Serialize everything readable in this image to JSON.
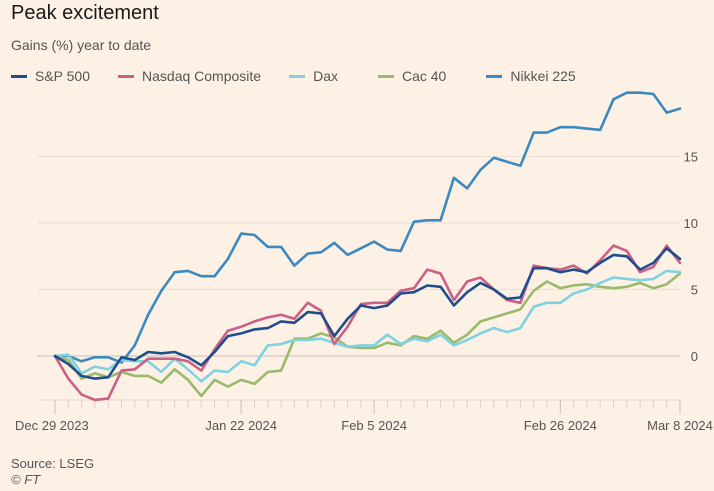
{
  "header": {
    "title": "Peak excitement",
    "subtitle": "Gains (%) year to date"
  },
  "footer": {
    "source": "Source: LSEG",
    "copyright": "© FT"
  },
  "chart_data": {
    "type": "line",
    "title": "Peak excitement",
    "subtitle": "Gains (%) year to date",
    "xlabel": "",
    "ylabel": "Gains (%)",
    "ylim": [
      -3.5,
      19.5
    ],
    "yticks": [
      0,
      5,
      10,
      15
    ],
    "x_tick_labels": [
      {
        "label": "Dec 29 2023",
        "index": 0
      },
      {
        "label": "Jan 22 2024",
        "index": 14
      },
      {
        "label": "Feb 5 2024",
        "index": 24
      },
      {
        "label": "Feb 26 2024",
        "index": 38
      },
      {
        "label": "Mar 8 2024",
        "index": 47
      }
    ],
    "n_points": 48,
    "grid": true,
    "legend_position": "top-left",
    "series": [
      {
        "name": "S&P 500",
        "color": "#1f4e8c",
        "values": [
          0,
          -0.6,
          -1.5,
          -1.7,
          -1.6,
          -0.1,
          -0.3,
          0.3,
          0.2,
          0.3,
          -0.1,
          -0.7,
          0.3,
          1.5,
          1.7,
          2.0,
          2.1,
          2.6,
          2.5,
          3.3,
          3.2,
          1.5,
          2.8,
          3.8,
          3.6,
          3.8,
          4.7,
          4.8,
          5.3,
          5.2,
          3.8,
          4.8,
          5.5,
          5.0,
          4.3,
          4.4,
          6.6,
          6.6,
          6.3,
          6.5,
          6.3,
          7.0,
          7.6,
          7.5,
          6.5,
          7.0,
          8.1,
          7.3
        ]
      },
      {
        "name": "Nasdaq Composite",
        "color": "#cc5f86",
        "values": [
          0,
          -1.7,
          -2.9,
          -3.3,
          -3.2,
          -1.1,
          -1.0,
          -0.2,
          -0.2,
          -0.2,
          -0.4,
          -1.1,
          0.5,
          1.9,
          2.2,
          2.6,
          2.9,
          3.1,
          2.8,
          4.0,
          3.4,
          0.9,
          2.2,
          3.9,
          4.0,
          4.0,
          4.9,
          5.1,
          6.5,
          6.2,
          4.2,
          5.6,
          5.9,
          5.0,
          4.2,
          4.0,
          6.8,
          6.6,
          6.5,
          6.8,
          6.2,
          7.2,
          8.3,
          7.9,
          6.3,
          6.7,
          8.3,
          7.0
        ]
      },
      {
        "name": "Dax",
        "color": "#7fd2e0",
        "values": [
          0,
          0.1,
          -1.3,
          -0.8,
          -1.0,
          -0.3,
          -0.4,
          -0.4,
          -1.2,
          -0.2,
          -1.0,
          -1.9,
          -1.1,
          -1.2,
          -0.4,
          -0.7,
          0.8,
          0.9,
          1.2,
          1.2,
          1.3,
          1.0,
          0.7,
          0.8,
          0.8,
          1.6,
          0.9,
          1.3,
          1.1,
          1.6,
          0.8,
          1.2,
          1.7,
          2.1,
          1.8,
          2.1,
          3.7,
          4.0,
          4.0,
          4.7,
          5.0,
          5.5,
          5.9,
          5.8,
          5.7,
          5.8,
          6.4,
          6.3
        ]
      },
      {
        "name": "Cac 40",
        "color": "#9ab96b",
        "values": [
          0,
          -0.3,
          -1.7,
          -1.3,
          -1.6,
          -1.2,
          -1.5,
          -1.5,
          -2.0,
          -1.0,
          -1.8,
          -3.0,
          -1.8,
          -2.3,
          -1.8,
          -2.1,
          -1.2,
          -1.1,
          1.3,
          1.3,
          1.7,
          1.4,
          0.7,
          0.6,
          0.6,
          1.0,
          0.8,
          1.5,
          1.3,
          1.9,
          1.0,
          1.6,
          2.6,
          2.9,
          3.2,
          3.5,
          4.9,
          5.6,
          5.1,
          5.3,
          5.4,
          5.2,
          5.1,
          5.2,
          5.5,
          5.1,
          5.4,
          6.2
        ]
      },
      {
        "name": "Nikkei 225",
        "color": "#3d89be",
        "values": [
          0,
          0,
          -0.4,
          -0.1,
          -0.1,
          -0.5,
          0.8,
          3.1,
          4.9,
          6.3,
          6.4,
          6.0,
          6.0,
          7.3,
          9.2,
          9.1,
          8.2,
          8.2,
          6.8,
          7.7,
          7.8,
          8.5,
          7.6,
          8.1,
          8.6,
          8.0,
          7.9,
          10.1,
          10.2,
          10.2,
          13.4,
          12.6,
          14.0,
          14.9,
          14.6,
          14.3,
          16.8,
          16.8,
          17.2,
          17.2,
          17.1,
          17.0,
          19.3,
          19.8,
          19.8,
          19.7,
          18.3,
          18.6
        ]
      }
    ]
  }
}
